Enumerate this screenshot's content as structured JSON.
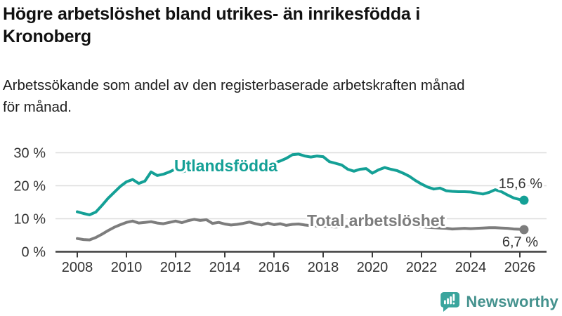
{
  "header": {
    "title_line1": "Högre arbetslöshet bland utrikes- än inrikesfödda i",
    "title_line2": "Kronoberg",
    "subtitle_line1": "Arbetssökande som andel av den registerbaserade arbetskraften månad",
    "subtitle_line2": "för månad."
  },
  "chart_data": {
    "type": "line",
    "title": "Högre arbetslöshet bland utrikes- än inrikesfödda i Kronoberg",
    "subtitle": "Arbetssökande som andel av den registerbaserade arbetskraften månad för månad.",
    "unit": "%",
    "grid": true,
    "legend_position": "inline-labels",
    "ylim": [
      0,
      32
    ],
    "xlim": [
      2007.8,
      2027.1
    ],
    "yticks": [
      {
        "value": 0,
        "label": "0 %"
      },
      {
        "value": 10,
        "label": "10 %"
      },
      {
        "value": 20,
        "label": "20 %"
      },
      {
        "value": 30,
        "label": "30 %"
      }
    ],
    "xticks": [
      {
        "value": 2008,
        "label": "2008"
      },
      {
        "value": 2010,
        "label": "2010"
      },
      {
        "value": 2012,
        "label": "2012"
      },
      {
        "value": 2014,
        "label": "2014"
      },
      {
        "value": 2016,
        "label": "2016"
      },
      {
        "value": 2018,
        "label": "2018"
      },
      {
        "value": 2020,
        "label": "2020"
      },
      {
        "value": 2022,
        "label": "2022"
      },
      {
        "value": 2024,
        "label": "2024"
      },
      {
        "value": 2026,
        "label": "2026"
      }
    ],
    "x": [
      2008.0,
      2008.25,
      2008.5,
      2008.75,
      2009.0,
      2009.25,
      2009.5,
      2009.75,
      2010.0,
      2010.25,
      2010.5,
      2010.75,
      2011.0,
      2011.25,
      2011.5,
      2011.75,
      2012.0,
      2012.25,
      2012.5,
      2012.75,
      2013.0,
      2013.25,
      2013.5,
      2013.75,
      2014.0,
      2014.25,
      2014.5,
      2014.75,
      2015.0,
      2015.25,
      2015.5,
      2015.75,
      2016.0,
      2016.25,
      2016.5,
      2016.75,
      2017.0,
      2017.25,
      2017.5,
      2017.75,
      2018.0,
      2018.25,
      2018.5,
      2018.75,
      2019.0,
      2019.25,
      2019.5,
      2019.75,
      2020.0,
      2020.25,
      2020.5,
      2020.75,
      2021.0,
      2021.25,
      2021.5,
      2021.75,
      2022.0,
      2022.25,
      2022.5,
      2022.75,
      2023.0,
      2023.25,
      2023.5,
      2023.75,
      2024.0,
      2024.25,
      2024.5,
      2024.75,
      2025.0,
      2025.25,
      2025.5,
      2025.75,
      2026.0,
      2026.17
    ],
    "series": [
      {
        "name": "Utlandsfödda",
        "color": "#14A096",
        "end_label": "15,6 %",
        "end_value": 15.6,
        "values": [
          12.1,
          11.6,
          11.2,
          12.0,
          14.0,
          16.2,
          18.0,
          19.8,
          21.2,
          21.9,
          20.7,
          21.4,
          24.2,
          23.1,
          23.5,
          24.2,
          25.1,
          24.2,
          24.7,
          25.4,
          26.2,
          26.9,
          25.6,
          25.9,
          26.3,
          26.0,
          25.6,
          26.2,
          26.5,
          26.3,
          27.0,
          27.2,
          26.9,
          27.5,
          28.3,
          29.4,
          29.6,
          29.0,
          28.7,
          29.0,
          28.8,
          27.3,
          26.8,
          26.3,
          25.0,
          24.4,
          25.0,
          25.2,
          23.8,
          24.8,
          25.5,
          25.0,
          24.6,
          23.8,
          22.9,
          21.6,
          20.5,
          19.6,
          19.0,
          19.3,
          18.5,
          18.3,
          18.2,
          18.2,
          18.1,
          17.8,
          17.5,
          18.0,
          18.8,
          18.2,
          17.2,
          16.3,
          15.8,
          15.6
        ]
      },
      {
        "name": "Total arbetslöshet",
        "color": "#7D7D7D",
        "end_label": "6,7 %",
        "end_value": 6.7,
        "values": [
          4.0,
          3.7,
          3.6,
          4.3,
          5.3,
          6.4,
          7.4,
          8.2,
          8.9,
          9.3,
          8.7,
          8.9,
          9.1,
          8.7,
          8.5,
          8.9,
          9.3,
          8.8,
          9.4,
          9.8,
          9.5,
          9.7,
          8.6,
          8.9,
          8.4,
          8.1,
          8.3,
          8.6,
          9.0,
          8.5,
          8.1,
          8.7,
          8.2,
          8.5,
          8.0,
          8.3,
          8.4,
          8.1,
          7.9,
          7.8,
          7.7,
          7.6,
          7.5,
          7.6,
          7.7,
          7.8,
          7.9,
          8.0,
          8.3,
          8.9,
          9.1,
          8.9,
          8.7,
          8.5,
          8.2,
          7.9,
          7.6,
          7.4,
          7.3,
          7.2,
          7.1,
          6.9,
          7.0,
          7.1,
          7.0,
          7.1,
          7.2,
          7.3,
          7.3,
          7.2,
          7.1,
          6.9,
          6.8,
          6.7
        ]
      }
    ]
  },
  "branding": {
    "name": "Newsworthy",
    "icon": "speech-bubble-bar-chart-icon",
    "icon_color": "#3AA59D",
    "text_color": "#45928E"
  },
  "colors": {
    "axis": "#3E3E3E",
    "grid": "#DEDEDE",
    "tick_text": "#333333",
    "value_text": "#333333"
  }
}
